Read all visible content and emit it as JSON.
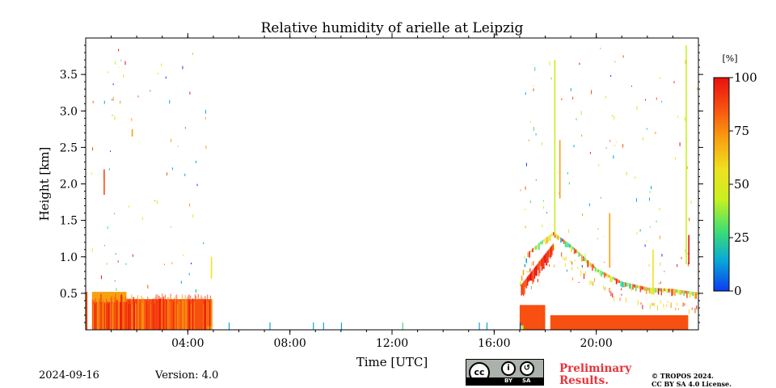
{
  "page": {
    "title": "Relative humidity of arielle at Leipzig",
    "date": "2024-09-16",
    "version": "Version: 4.0",
    "preliminary": "Preliminary Results.",
    "copyright_line1": "© TROPOS 2024.",
    "copyright_line2": "CC BY SA 4.0 License.",
    "cc_badge": {
      "icon": "cc-by-sa-license-icon",
      "by_label": "BY",
      "sa_label": "SA"
    }
  },
  "chart_data": {
    "type": "heatmap",
    "title": "Relative humidity of arielle at Leipzig",
    "xlabel": "Time [UTC]",
    "ylabel": "Height [km]",
    "xlim": [
      0,
      24
    ],
    "ylim": [
      0,
      4.0
    ],
    "xticks": [
      {
        "value": 4,
        "label": "04:00"
      },
      {
        "value": 8,
        "label": "08:00"
      },
      {
        "value": 12,
        "label": "12:00"
      },
      {
        "value": 16,
        "label": "16:00"
      },
      {
        "value": 20,
        "label": "20:00"
      }
    ],
    "yticks": [
      {
        "value": 0.5,
        "label": "0.5"
      },
      {
        "value": 1.0,
        "label": "1.0"
      },
      {
        "value": 1.5,
        "label": "1.5"
      },
      {
        "value": 2.0,
        "label": "2.0"
      },
      {
        "value": 2.5,
        "label": "2.5"
      },
      {
        "value": 3.0,
        "label": "3.0"
      },
      {
        "value": 3.5,
        "label": "3.5"
      }
    ],
    "colorbar": {
      "unit": "[%]",
      "min": 0,
      "max": 100,
      "ticks": [
        {
          "value": 0,
          "label": "0"
        },
        {
          "value": 25,
          "label": "25"
        },
        {
          "value": 50,
          "label": "50"
        },
        {
          "value": 75,
          "label": "75"
        },
        {
          "value": 100,
          "label": "100"
        }
      ],
      "colors": [
        "#0b3cf0",
        "#08a8d8",
        "#40e070",
        "#c8f020",
        "#f0e020",
        "#f8a010",
        "#f85010",
        "#e81010"
      ]
    },
    "regions": [
      {
        "t_start": 0.0,
        "t_end": 0.07,
        "h_bottom": 0.0,
        "h_top": 0.52,
        "rh": 90
      },
      {
        "t_start": 0.25,
        "t_end": 4.95,
        "h_bottom": 0.0,
        "h_top": 0.42,
        "rh": 85
      },
      {
        "t_start": 0.25,
        "t_end": 1.6,
        "h_bottom": 0.38,
        "h_top": 0.52,
        "rh": 75
      },
      {
        "t_start": 4.75,
        "t_end": 4.95,
        "h_bottom": 0.0,
        "h_top": 0.05,
        "rh": 50
      },
      {
        "t_start": 17.0,
        "t_end": 18.0,
        "h_bottom": 0.0,
        "h_top": 0.34,
        "rh": 92
      },
      {
        "t_start": 18.2,
        "t_end": 23.6,
        "h_bottom": 0.0,
        "h_top": 0.2,
        "rh": 88
      },
      {
        "t_start": 17.0,
        "t_end": 17.15,
        "h_bottom": 0.0,
        "h_top": 0.06,
        "rh": 40
      }
    ],
    "layer_top": [
      {
        "t": 17.0,
        "h": 0.6
      },
      {
        "t": 17.3,
        "h": 1.0
      },
      {
        "t": 17.8,
        "h": 1.15
      },
      {
        "t": 18.3,
        "h": 1.28
      },
      {
        "t": 19.0,
        "h": 1.1
      },
      {
        "t": 20.0,
        "h": 0.78
      },
      {
        "t": 21.0,
        "h": 0.6
      },
      {
        "t": 22.0,
        "h": 0.52
      },
      {
        "t": 23.0,
        "h": 0.5
      },
      {
        "t": 24.0,
        "h": 0.45
      }
    ],
    "streaks": [
      {
        "t": 0.7,
        "h0": 1.85,
        "h1": 2.2,
        "rh": 85
      },
      {
        "t": 1.8,
        "h0": 2.65,
        "h1": 2.75,
        "rh": 75
      },
      {
        "t": 4.9,
        "h0": 0.7,
        "h1": 1.0,
        "rh": 60
      },
      {
        "t": 18.35,
        "h0": 1.3,
        "h1": 3.7,
        "rh": 40
      },
      {
        "t": 18.55,
        "h0": 1.8,
        "h1": 2.6,
        "rh": 70
      },
      {
        "t": 20.5,
        "h0": 0.85,
        "h1": 1.6,
        "rh": 70
      },
      {
        "t": 22.2,
        "h0": 0.5,
        "h1": 1.1,
        "rh": 55
      },
      {
        "t": 23.5,
        "h0": 0.9,
        "h1": 3.9,
        "rh": 40
      },
      {
        "t": 23.6,
        "h0": 0.9,
        "h1": 1.3,
        "rh": 95
      }
    ],
    "ground_spikes": [
      {
        "t": 5.6,
        "rh": 10
      },
      {
        "t": 7.2,
        "rh": 15
      },
      {
        "t": 8.9,
        "rh": 20
      },
      {
        "t": 9.3,
        "rh": 15
      },
      {
        "t": 10.0,
        "rh": 20
      },
      {
        "t": 12.4,
        "rh": 25
      },
      {
        "t": 15.4,
        "rh": 10
      },
      {
        "t": 15.7,
        "rh": 20
      },
      {
        "t": 17.0,
        "rh": 5
      }
    ]
  }
}
